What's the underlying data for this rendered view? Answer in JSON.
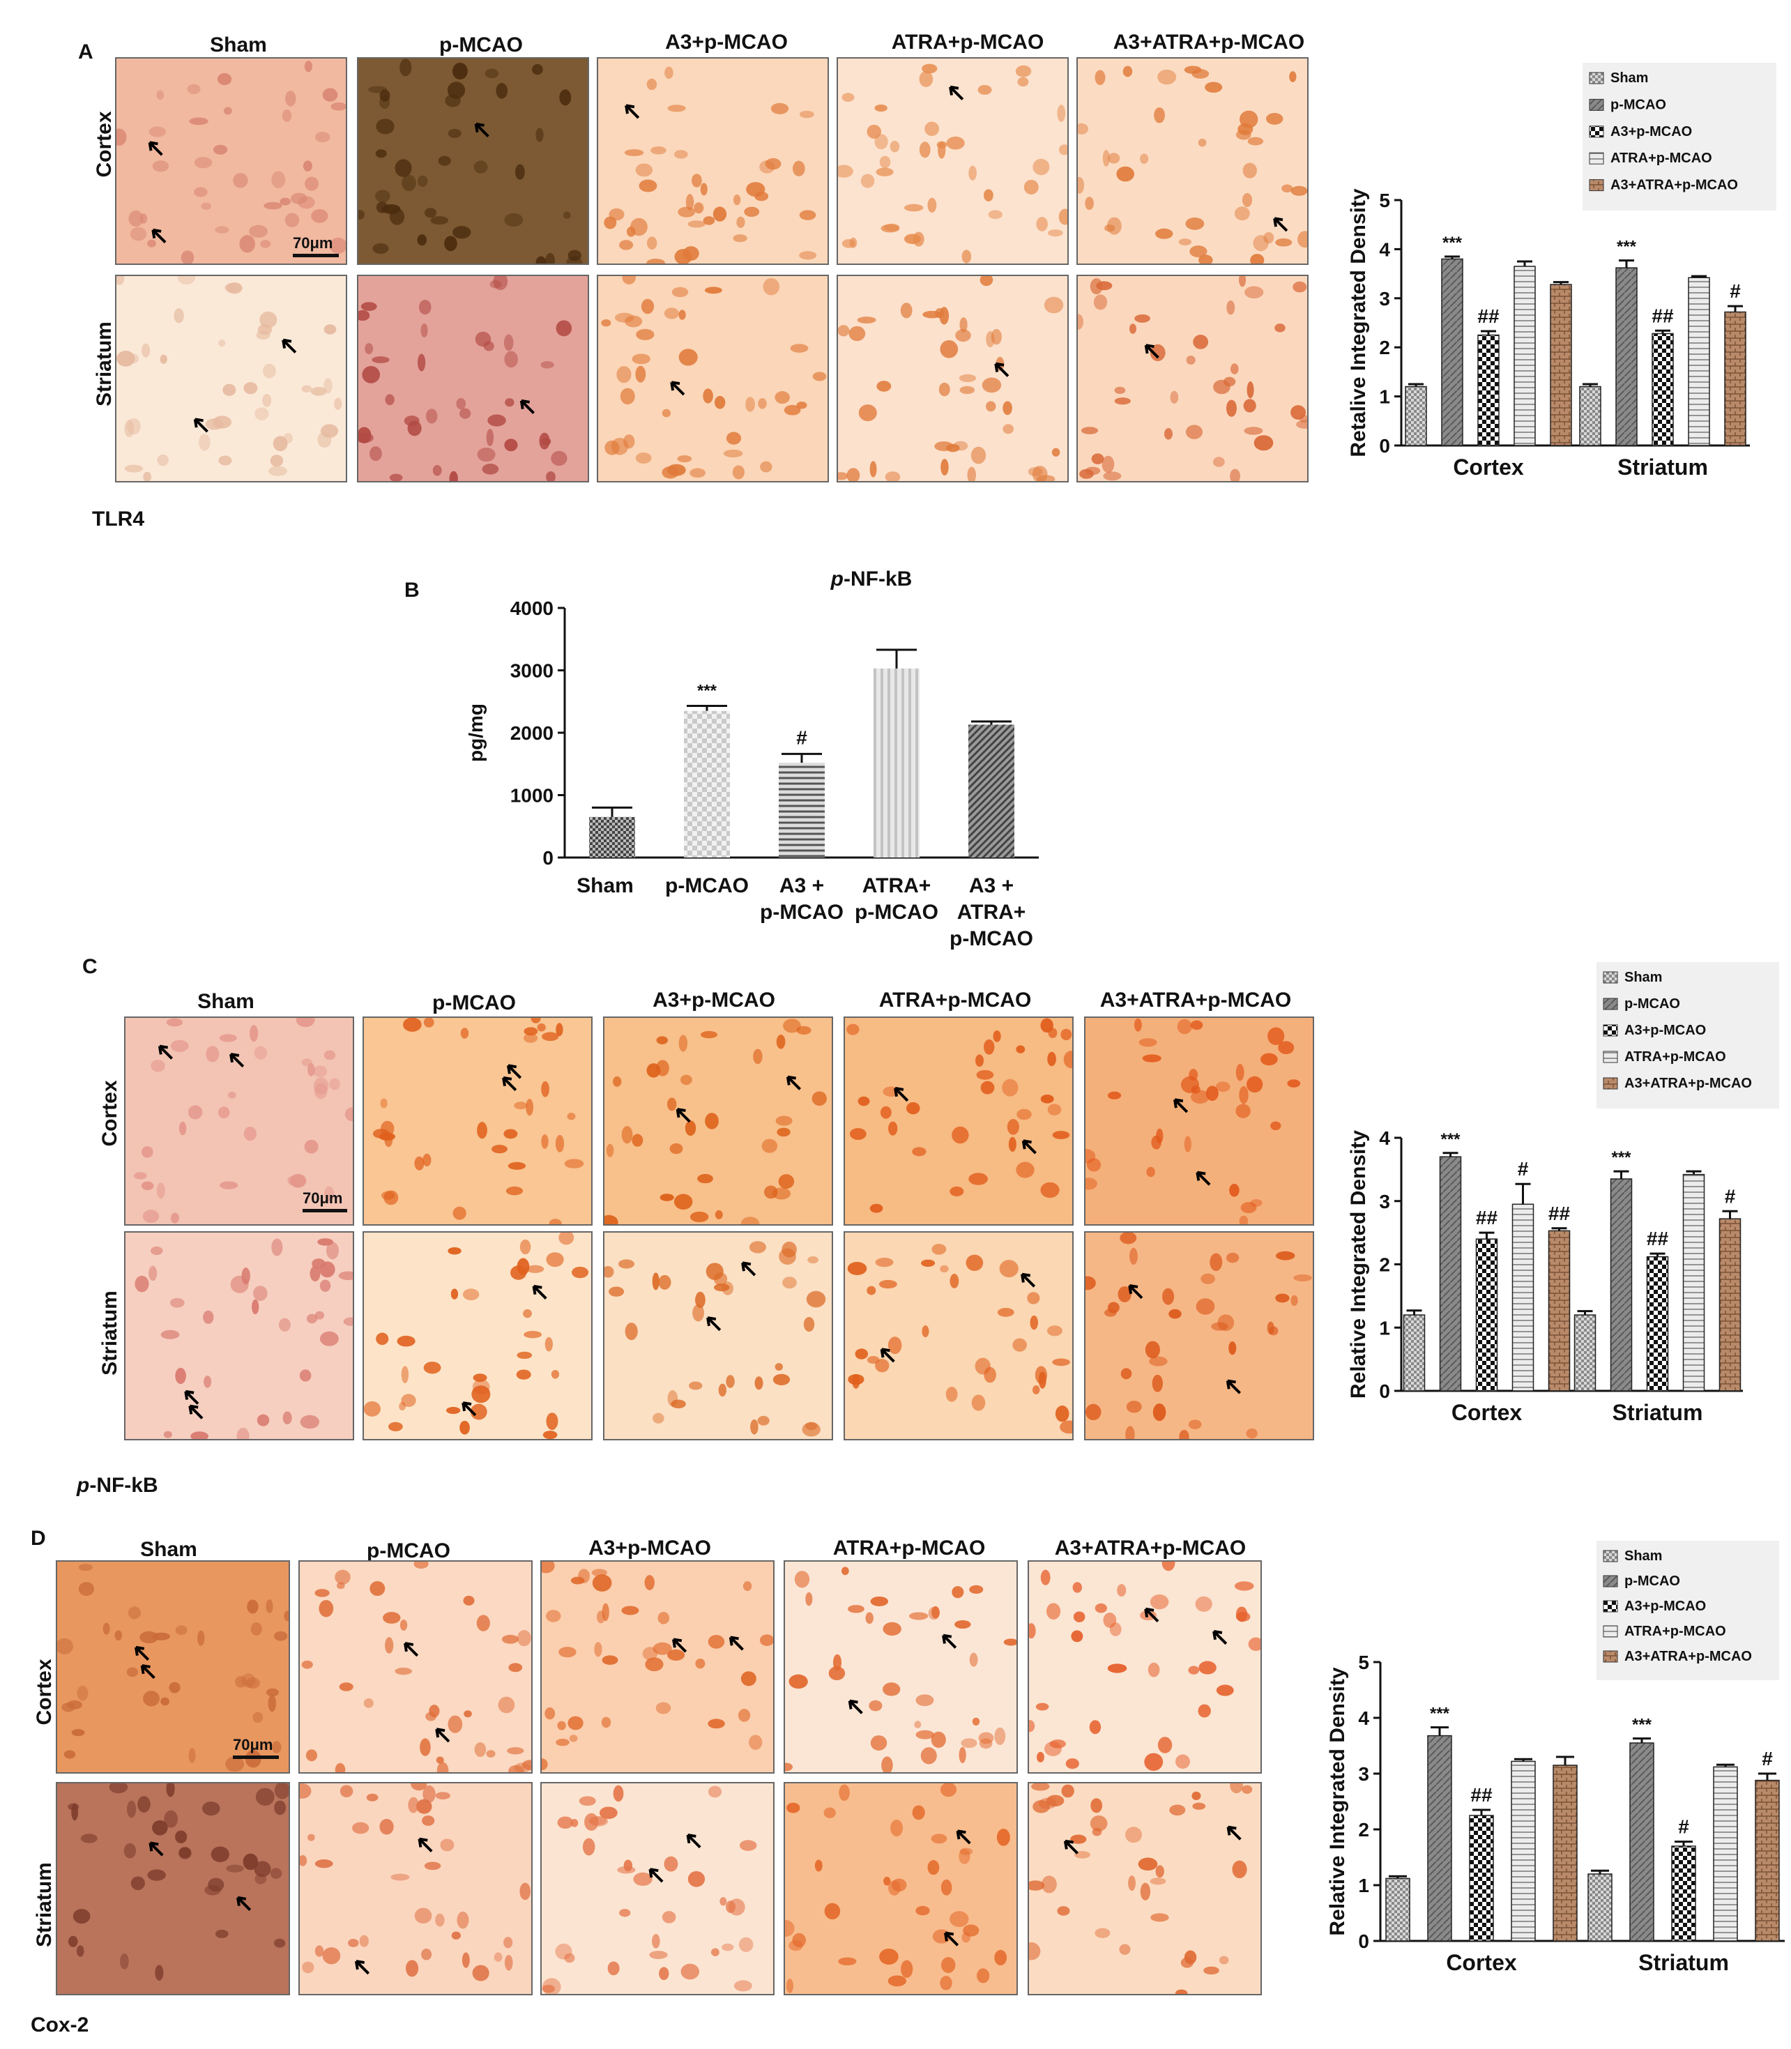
{
  "groups": [
    "Sham",
    "p-MCAO",
    "A3+p-MCAO",
    "ATRA+p-MCAO",
    "A3+ATRA+p-MCAO"
  ],
  "regions": [
    "Cortex",
    "Striatum"
  ],
  "scale_bar": "70μm",
  "panel_A": {
    "letter": "A",
    "marker": "TLR4",
    "colors": [
      "#ede7e2",
      "#fbf8f6",
      "#f7f1ed",
      "#ede8e4",
      "#fbf6f3",
      "#ede6e0",
      "#f1ebe6",
      "#fbf8f6",
      "#fbf7f4",
      "#f5ede8"
    ],
    "texts": [
      "Cortex Sham",
      "Cortex p-MCAO",
      "Cortex A3+p-MCAO",
      "Cortex ATRA+p-MCAO",
      "Cortex A3+ATRA+p-MCAO",
      "Striatum Sham",
      "Striatum p-MCAO",
      "Striatum A3+p-MCAO",
      "Striatum ATRA+p-MCAO",
      "Striatum A3+ATRA+p-MCAO"
    ]
  },
  "panel_B_meta": {
    "letter": "B"
  },
  "panel_C": {
    "letter": "C",
    "marker": "p-NF-kB",
    "marker_italic": "p"
  },
  "panel_D": {
    "letter": "D",
    "marker": "Cox-2"
  },
  "chart_data": [
    {
      "id": "A_chart",
      "type": "bar",
      "categories": [
        "Cortex",
        "Striatum"
      ],
      "ylabel": "Retalive Integrated Density",
      "ylim": [
        0,
        5
      ],
      "yticks": [
        0,
        1,
        2,
        3,
        4,
        5
      ],
      "legend": [
        "Sham",
        "p-MCAO",
        "A3+p-MCAO",
        "ATRA+p-MCAO",
        "A3+ATRA+p-MCAO"
      ],
      "legend_position": "top-right",
      "series": [
        {
          "name": "Sham",
          "values": [
            1.2,
            1.2
          ],
          "errors": [
            0.05,
            0.05
          ],
          "annotations": [
            "",
            ""
          ]
        },
        {
          "name": "p-MCAO",
          "values": [
            3.8,
            3.62
          ],
          "errors": [
            0.05,
            0.15
          ],
          "annotations": [
            "***",
            "***"
          ]
        },
        {
          "name": "A3+p-MCAO",
          "values": [
            2.25,
            2.28
          ],
          "errors": [
            0.08,
            0.06
          ],
          "annotations": [
            "##",
            "##"
          ]
        },
        {
          "name": "ATRA+p-MCAO",
          "values": [
            3.65,
            3.42
          ],
          "errors": [
            0.1,
            0.03
          ],
          "annotations": [
            "",
            ""
          ]
        },
        {
          "name": "A3+ATRA+p-MCAO",
          "values": [
            3.28,
            2.72
          ],
          "errors": [
            0.05,
            0.12
          ],
          "annotations": [
            "",
            "#"
          ]
        }
      ]
    },
    {
      "id": "B_chart",
      "type": "bar",
      "title": "p-NF-kB",
      "title_italic": "p",
      "title_rest": "-NF-kB",
      "categories": [
        "Sham",
        "p-MCAO",
        "A3 +\np-MCAO",
        "ATRA+\np-MCAO",
        "A3 +\nATRA+\np-MCAO"
      ],
      "values": [
        650,
        2350,
        1520,
        3030,
        2130
      ],
      "errors": [
        150,
        80,
        140,
        300,
        50
      ],
      "annotations": [
        "",
        "***",
        "#",
        "",
        ""
      ],
      "ylabel": "pg/mg",
      "ylim": [
        0,
        4000
      ],
      "yticks": [
        0,
        1000,
        2000,
        3000,
        4000
      ]
    },
    {
      "id": "C_chart",
      "type": "bar",
      "categories": [
        "Cortex",
        "Striatum"
      ],
      "ylabel": "Relative Integrated Density",
      "ylim": [
        0,
        4
      ],
      "yticks": [
        0,
        1,
        2,
        3,
        4
      ],
      "legend": [
        "Sham",
        "p-MCAO",
        "A3+p-MCAO",
        "ATRA+p-MCAO",
        "A3+ATRA+p-MCAO"
      ],
      "legend_position": "top-right",
      "series": [
        {
          "name": "Sham",
          "values": [
            1.2,
            1.2
          ],
          "errors": [
            0.07,
            0.06
          ],
          "annotations": [
            "",
            ""
          ]
        },
        {
          "name": "p-MCAO",
          "values": [
            3.7,
            3.35
          ],
          "errors": [
            0.06,
            0.12
          ],
          "annotations": [
            "***",
            "***"
          ]
        },
        {
          "name": "A3+p-MCAO",
          "values": [
            2.4,
            2.12
          ],
          "errors": [
            0.1,
            0.05
          ],
          "annotations": [
            "##",
            "##"
          ]
        },
        {
          "name": "ATRA+p-MCAO",
          "values": [
            2.95,
            3.42
          ],
          "errors": [
            0.32,
            0.05
          ],
          "annotations": [
            "#",
            ""
          ]
        },
        {
          "name": "A3+ATRA+p-MCAO",
          "values": [
            2.53,
            2.72
          ],
          "errors": [
            0.04,
            0.12
          ],
          "annotations": [
            "##",
            "#"
          ]
        }
      ]
    },
    {
      "id": "D_chart",
      "type": "bar",
      "categories": [
        "Cortex",
        "Striatum"
      ],
      "ylabel": "Relative Integrated Density",
      "ylim": [
        0,
        5
      ],
      "yticks": [
        0,
        1,
        2,
        3,
        4,
        5
      ],
      "legend": [
        "Sham",
        "p-MCAO",
        "A3+p-MCAO",
        "ATRA+p-MCAO",
        "A3+ATRA+p-MCAO"
      ],
      "legend_position": "top-right",
      "series": [
        {
          "name": "Sham",
          "values": [
            1.12,
            1.2
          ],
          "errors": [
            0.04,
            0.06
          ],
          "annotations": [
            "",
            ""
          ]
        },
        {
          "name": "p-MCAO",
          "values": [
            3.68,
            3.55
          ],
          "errors": [
            0.15,
            0.08
          ],
          "annotations": [
            "***",
            "***"
          ]
        },
        {
          "name": "A3+p-MCAO",
          "values": [
            2.25,
            1.7
          ],
          "errors": [
            0.1,
            0.08
          ],
          "annotations": [
            "##",
            "#"
          ]
        },
        {
          "name": "ATRA+p-MCAO",
          "values": [
            3.22,
            3.12
          ],
          "errors": [
            0.04,
            0.04
          ],
          "annotations": [
            "",
            ""
          ]
        },
        {
          "name": "A3+ATRA+p-MCAO",
          "values": [
            3.15,
            2.88
          ],
          "errors": [
            0.15,
            0.12
          ],
          "annotations": [
            "",
            "#"
          ]
        }
      ]
    }
  ]
}
